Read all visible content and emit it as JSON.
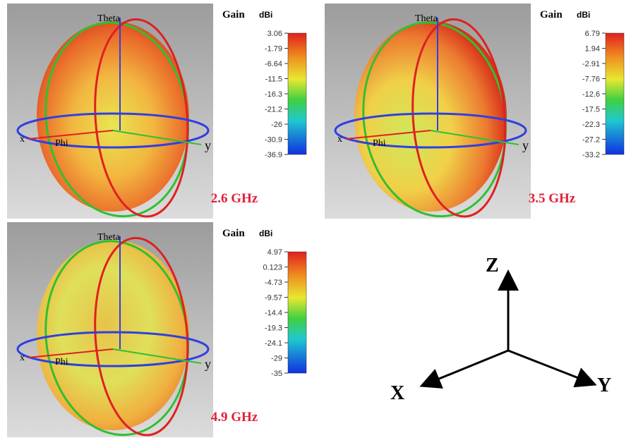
{
  "panels": [
    {
      "gain_label": "Gain",
      "unit": "dBi",
      "theta": "Theta",
      "phi": "Phi",
      "x": "x",
      "y": "y",
      "frequency": "2.6 GHz",
      "ticks": [
        "3.06",
        "-1.79",
        "-6.64",
        "-11.5",
        "-16.3",
        "-21.2",
        "-26",
        "-30.9",
        "-36.9"
      ]
    },
    {
      "gain_label": "Gain",
      "unit": "dBi",
      "theta": "Theta",
      "phi": "Phi",
      "x": "x",
      "y": "y",
      "frequency": "3.5 GHz",
      "ticks": [
        "6.79",
        "1.94",
        "-2.91",
        "-7.76",
        "-12.6",
        "-17.5",
        "-22.3",
        "-27.2",
        "-33.2"
      ]
    },
    {
      "gain_label": "Gain",
      "unit": "dBi",
      "theta": "Theta",
      "phi": "Phi",
      "x": "x",
      "y": "y",
      "frequency": "4.9 GHz",
      "ticks": [
        "4.97",
        "0.123",
        "-4.73",
        "-9.57",
        "-14.4",
        "-19.3",
        "-24.1",
        "-29",
        "-35"
      ]
    }
  ],
  "axes": {
    "z": "Z",
    "x": "X",
    "y": "Y"
  }
}
